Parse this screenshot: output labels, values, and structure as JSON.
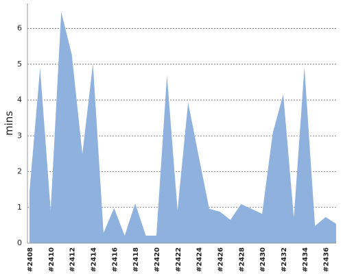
{
  "chart_data": {
    "type": "area",
    "y_label": "mins",
    "categories": [
      "#2408",
      null,
      "#2410",
      null,
      "#2412",
      null,
      "#2414",
      null,
      "#2416",
      null,
      "#2418",
      null,
      "#2420",
      null,
      "#2422",
      null,
      "#2424",
      null,
      "#2426",
      null,
      "#2428",
      null,
      "#2430",
      null,
      "#2432",
      null,
      "#2434",
      null,
      "#2436",
      null
    ],
    "values": [
      1.44,
      4.89,
      0.92,
      6.46,
      5.27,
      2.49,
      5.02,
      0.29,
      0.98,
      0.21,
      1.11,
      0.21,
      0.21,
      4.69,
      0.92,
      3.93,
      2.43,
      0.96,
      0.88,
      0.65,
      1.09,
      0.96,
      0.82,
      3.07,
      4.16,
      0.71,
      4.92,
      0.48,
      0.73,
      0.54
    ],
    "color": "#8fb1dd",
    "ylim": [
      0,
      6.7
    ],
    "yticks": [
      0,
      1,
      2,
      3,
      4,
      5,
      6
    ],
    "grid": true
  }
}
